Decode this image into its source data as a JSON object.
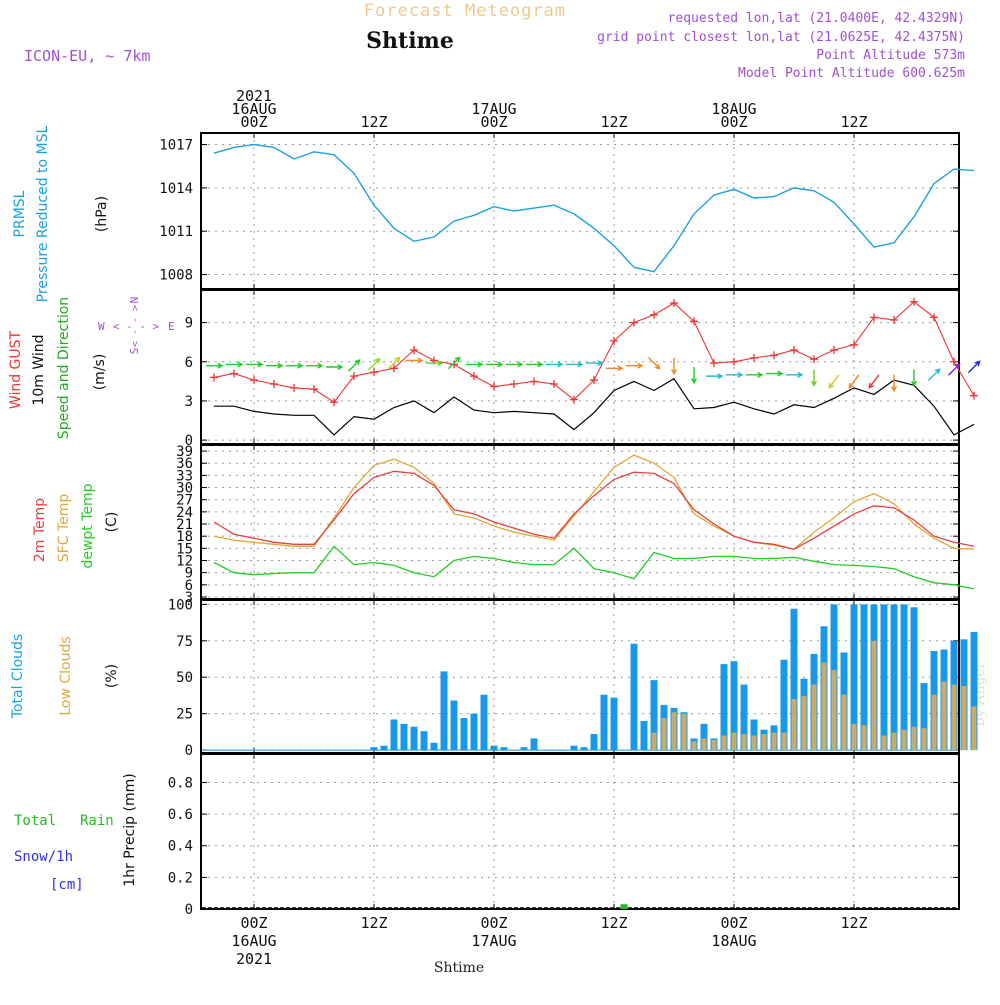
{
  "header": {
    "title_top": "Forecast Meteogram",
    "location": "Shtime",
    "model": "ICON-EU, ~ 7km",
    "requested": "requested lon,lat (21.0400E, 42.4329N)",
    "gridpoint": "grid point closest lon,lat (21.0625E, 42.4375N)",
    "point_alt": "Point Altitude 573m",
    "model_alt": "Model Point Altitude 600.625m",
    "footer_location": "Shtime",
    "watermark": "by Angel"
  },
  "time_axis": {
    "top_labels": [
      {
        "hour": 0,
        "lines": [
          "2021",
          "16AUG",
          "00Z"
        ]
      },
      {
        "hour": 12,
        "lines": [
          "12Z"
        ]
      },
      {
        "hour": 24,
        "lines": [
          "17AUG",
          "00Z"
        ]
      },
      {
        "hour": 36,
        "lines": [
          "12Z"
        ]
      },
      {
        "hour": 48,
        "lines": [
          "18AUG",
          "00Z"
        ]
      },
      {
        "hour": 60,
        "lines": [
          "12Z"
        ]
      }
    ],
    "bottom_labels": [
      {
        "hour": 0,
        "lines": [
          "00Z",
          "16AUG",
          "2021"
        ]
      },
      {
        "hour": 12,
        "lines": [
          "12Z"
        ]
      },
      {
        "hour": 24,
        "lines": [
          "00Z",
          "17AUG"
        ]
      },
      {
        "hour": 36,
        "lines": [
          "12Z"
        ]
      },
      {
        "hour": 48,
        "lines": [
          "00Z",
          "18AUG"
        ]
      },
      {
        "hour": 60,
        "lines": [
          "12Z"
        ]
      }
    ]
  },
  "colors": {
    "pressure": "#1ba1e2",
    "gust": "#ee3333",
    "wind": "#000000",
    "t2m": "#e34040",
    "sfc": "#e0a838",
    "dewpt": "#22cc22",
    "total_clouds": "#1799e8",
    "low_clouds": "#c9ab6a",
    "rain": "#22bb22",
    "snow": "#3030e0",
    "title_top": "#f0c890",
    "purple": "#a050d0"
  },
  "labels": {
    "p1": [
      "PRMSL",
      "Pressure Reduced to MSL",
      "(hPa)"
    ],
    "p2": [
      "Wind GUST",
      "10m Wind",
      "Speed and Direction",
      "(m/s)"
    ],
    "p3": [
      "2m Temp",
      "SFC Temp",
      "dewpt Temp",
      "(C)"
    ],
    "p4": [
      "Total Clouds",
      "Low Clouds",
      "(%)"
    ],
    "p5_total": "Total",
    "p5_rain": "Rain",
    "p5_snow": "Snow/1h",
    "p5_cm": "[cm]",
    "p5_axis": "1hr Precip (mm)",
    "compass": {
      "n": "N",
      "s": "S",
      "w": "W",
      "e": "E",
      "arrows": "< - - >"
    }
  },
  "chart_data": [
    {
      "type": "line",
      "name": "PRMSL",
      "ylabel": "(hPa)",
      "yticks": [
        "1008",
        "1011",
        "1014",
        "1017"
      ],
      "ylim": [
        1007,
        1017.8
      ],
      "x": [
        -4,
        -2,
        0,
        2,
        4,
        6,
        8,
        10,
        12,
        14,
        16,
        18,
        20,
        22,
        24,
        26,
        28,
        30,
        32,
        34,
        36,
        38,
        40,
        42,
        44,
        46,
        48,
        50,
        52,
        54,
        56,
        58,
        60,
        62,
        64,
        66,
        68,
        70,
        72
      ],
      "values": [
        1016.4,
        1016.8,
        1017.0,
        1016.8,
        1016.0,
        1016.5,
        1016.3,
        1015.0,
        1012.8,
        1011.2,
        1010.3,
        1010.6,
        1011.7,
        1012.1,
        1012.7,
        1012.4,
        1012.6,
        1012.8,
        1012.2,
        1011.2,
        1010.0,
        1008.5,
        1008.2,
        1010.0,
        1012.2,
        1013.5,
        1013.9,
        1013.3,
        1013.4,
        1014.0,
        1013.8,
        1013.0,
        1011.5,
        1009.9,
        1010.2,
        1012.0,
        1014.3,
        1015.3,
        1015.2
      ]
    },
    {
      "type": "line",
      "name": "Wind",
      "ylabel": "(m/s)",
      "yticks": [
        "0",
        "3",
        "6",
        "9"
      ],
      "ylim": [
        -0.3,
        11.5
      ],
      "x": [
        -4,
        -2,
        0,
        2,
        4,
        6,
        8,
        10,
        12,
        14,
        16,
        18,
        20,
        22,
        24,
        26,
        28,
        30,
        32,
        34,
        36,
        38,
        40,
        42,
        44,
        46,
        48,
        50,
        52,
        54,
        56,
        58,
        60,
        62,
        64,
        66,
        68,
        70,
        72
      ],
      "gust": [
        4.8,
        5.1,
        4.6,
        4.3,
        4.0,
        3.9,
        2.9,
        4.9,
        5.2,
        5.5,
        6.9,
        6.1,
        5.8,
        4.9,
        4.1,
        4.3,
        4.5,
        4.3,
        3.1,
        4.6,
        7.6,
        9.0,
        9.6,
        10.5,
        9.1,
        5.9,
        6.0,
        6.3,
        6.5,
        6.9,
        6.2,
        6.9,
        7.3,
        9.4,
        9.2,
        10.6,
        9.4,
        6.0,
        3.4
      ],
      "wind": [
        2.6,
        2.6,
        2.2,
        2.0,
        1.9,
        1.9,
        0.4,
        1.8,
        1.6,
        2.5,
        3.0,
        2.1,
        3.3,
        2.3,
        2.1,
        2.2,
        2.1,
        2.0,
        0.8,
        2.1,
        3.8,
        4.5,
        3.8,
        4.7,
        2.4,
        2.5,
        2.9,
        2.4,
        2.0,
        2.7,
        2.5,
        3.2,
        4.0,
        3.5,
        4.6,
        4.2,
        2.6,
        0.4,
        1.2
      ],
      "arrows": [
        {
          "x": -4,
          "y": 5.7,
          "dir": "e",
          "c": "#22cc22"
        },
        {
          "x": -2,
          "y": 5.8,
          "dir": "e",
          "c": "#22cc22"
        },
        {
          "x": 0,
          "y": 5.8,
          "dir": "e",
          "c": "#22cc22"
        },
        {
          "x": 2,
          "y": 5.7,
          "dir": "e",
          "c": "#22cc22"
        },
        {
          "x": 4,
          "y": 5.7,
          "dir": "e",
          "c": "#22cc22"
        },
        {
          "x": 6,
          "y": 5.7,
          "dir": "e",
          "c": "#22cc22"
        },
        {
          "x": 8,
          "y": 5.6,
          "dir": "e",
          "c": "#22cc22"
        },
        {
          "x": 10,
          "y": 5.7,
          "dir": "ne",
          "c": "#22cc22"
        },
        {
          "x": 12,
          "y": 5.8,
          "dir": "ne",
          "c": "#88dd22"
        },
        {
          "x": 14,
          "y": 5.9,
          "dir": "ne",
          "c": "#cccc22"
        },
        {
          "x": 16,
          "y": 6.1,
          "dir": "e",
          "c": "#ee8822"
        },
        {
          "x": 18,
          "y": 5.9,
          "dir": "e",
          "c": "#66cc22"
        },
        {
          "x": 20,
          "y": 5.9,
          "dir": "ne",
          "c": "#22cc22"
        },
        {
          "x": 22,
          "y": 5.8,
          "dir": "e",
          "c": "#22cc22"
        },
        {
          "x": 24,
          "y": 5.8,
          "dir": "e",
          "c": "#22cc22"
        },
        {
          "x": 26,
          "y": 5.8,
          "dir": "e",
          "c": "#22cc22"
        },
        {
          "x": 28,
          "y": 5.8,
          "dir": "e",
          "c": "#22cc22"
        },
        {
          "x": 30,
          "y": 5.8,
          "dir": "e",
          "c": "#22bbcc"
        },
        {
          "x": 32,
          "y": 5.8,
          "dir": "e",
          "c": "#22bbcc"
        },
        {
          "x": 34,
          "y": 5.9,
          "dir": "e",
          "c": "#22bbcc"
        },
        {
          "x": 36,
          "y": 5.5,
          "dir": "e",
          "c": "#ee8822"
        },
        {
          "x": 38,
          "y": 5.7,
          "dir": "e",
          "c": "#ee8822"
        },
        {
          "x": 40,
          "y": 5.9,
          "dir": "se",
          "c": "#ee8822"
        },
        {
          "x": 42,
          "y": 5.7,
          "dir": "s",
          "c": "#ee8822"
        },
        {
          "x": 44,
          "y": 5.0,
          "dir": "s",
          "c": "#22cc22"
        },
        {
          "x": 46,
          "y": 4.9,
          "dir": "e",
          "c": "#22bbcc"
        },
        {
          "x": 48,
          "y": 5.0,
          "dir": "e",
          "c": "#22bbcc"
        },
        {
          "x": 50,
          "y": 5.0,
          "dir": "e",
          "c": "#22cc22"
        },
        {
          "x": 52,
          "y": 5.1,
          "dir": "e",
          "c": "#22cc22"
        },
        {
          "x": 54,
          "y": 5.0,
          "dir": "e",
          "c": "#22bbcc"
        },
        {
          "x": 56,
          "y": 4.8,
          "dir": "s",
          "c": "#66cc22"
        },
        {
          "x": 58,
          "y": 4.5,
          "dir": "sw",
          "c": "#cccc22"
        },
        {
          "x": 60,
          "y": 4.5,
          "dir": "sw",
          "c": "#ee8822"
        },
        {
          "x": 62,
          "y": 4.5,
          "dir": "sw",
          "c": "#ee3333"
        },
        {
          "x": 64,
          "y": 4.4,
          "dir": "s",
          "c": "#ee8822"
        },
        {
          "x": 66,
          "y": 4.8,
          "dir": "s",
          "c": "#22cc22"
        },
        {
          "x": 68,
          "y": 5.0,
          "dir": "ne",
          "c": "#22bbcc"
        },
        {
          "x": 70,
          "y": 5.4,
          "dir": "ne",
          "c": "#8822cc"
        },
        {
          "x": 72,
          "y": 5.6,
          "dir": "ne",
          "c": "#2222ee"
        }
      ]
    },
    {
      "type": "line",
      "name": "Temperature",
      "ylabel": "(C)",
      "yticks": [
        "3",
        "6",
        "9",
        "12",
        "15",
        "18",
        "21",
        "24",
        "27",
        "30",
        "33",
        "36",
        "39"
      ],
      "ylim": [
        2.5,
        40.5
      ],
      "x": [
        -4,
        -2,
        0,
        2,
        4,
        6,
        8,
        10,
        12,
        14,
        16,
        18,
        20,
        22,
        24,
        26,
        28,
        30,
        32,
        34,
        36,
        38,
        40,
        42,
        44,
        46,
        48,
        50,
        52,
        54,
        56,
        58,
        60,
        62,
        64,
        66,
        68,
        70,
        72
      ],
      "t2m": [
        21.5,
        18.5,
        17.5,
        16.5,
        16.0,
        16.0,
        22.0,
        28.5,
        32.5,
        34.0,
        33.5,
        30.5,
        24.5,
        23.5,
        21.5,
        20.0,
        18.5,
        17.5,
        23.5,
        28.0,
        32.0,
        33.8,
        33.5,
        31.0,
        24.5,
        21.0,
        18.0,
        16.5,
        16.0,
        14.8,
        17.5,
        20.5,
        23.5,
        25.5,
        25.0,
        22.0,
        18.0,
        16.5,
        15.5
      ],
      "sfc": [
        18.0,
        17.0,
        16.5,
        16.0,
        15.5,
        15.5,
        22.5,
        30.0,
        35.5,
        37.0,
        35.0,
        31.0,
        23.5,
        22.5,
        20.5,
        19.0,
        18.0,
        17.0,
        23.0,
        29.0,
        35.0,
        38.0,
        36.0,
        32.5,
        23.5,
        20.5,
        18.0,
        16.5,
        15.8,
        14.8,
        19.0,
        22.5,
        26.5,
        28.5,
        26.0,
        21.0,
        17.5,
        15.0,
        14.8
      ],
      "dewpt": [
        11.5,
        9.0,
        8.5,
        8.8,
        9.0,
        9.0,
        15.5,
        11.0,
        11.5,
        10.8,
        9.0,
        8.0,
        12.0,
        13.0,
        12.5,
        11.5,
        11.0,
        11.0,
        15.0,
        10.0,
        9.0,
        7.5,
        14.0,
        12.5,
        12.5,
        13.0,
        13.0,
        12.5,
        12.5,
        12.8,
        11.8,
        11.0,
        10.8,
        10.5,
        10.0,
        8.0,
        6.5,
        6.0,
        5.0
      ]
    },
    {
      "type": "bar",
      "name": "Clouds",
      "ylabel": "(%)",
      "yticks": [
        "0",
        "25",
        "50",
        "75",
        "100"
      ],
      "ylim": [
        -2,
        103
      ],
      "x": [
        9,
        10,
        11,
        12,
        13,
        14,
        15,
        16,
        17,
        18,
        19,
        20,
        21,
        22,
        23,
        24,
        25,
        26,
        27,
        28,
        29,
        30,
        31,
        32,
        33,
        34,
        35,
        36,
        37,
        38,
        39,
        40,
        41,
        42,
        43,
        44,
        45,
        46,
        47,
        48,
        49,
        50,
        51,
        52,
        53,
        54,
        55,
        56,
        57,
        58,
        59,
        60,
        61,
        62,
        63,
        64,
        65,
        66,
        67,
        68,
        69,
        70,
        71,
        72
      ],
      "total": [
        0,
        0,
        0,
        2,
        3,
        21,
        18,
        16,
        13,
        5,
        54,
        34,
        22,
        25,
        38,
        3,
        2,
        0,
        2,
        8,
        0,
        0,
        0,
        3,
        2,
        11,
        38,
        36,
        0,
        73,
        20,
        48,
        31,
        29,
        26,
        8,
        18,
        8,
        59,
        61,
        45,
        21,
        14,
        17,
        62,
        97,
        49,
        66,
        85,
        100,
        67,
        100,
        100,
        100,
        100,
        100,
        100,
        98,
        46,
        68,
        69,
        75,
        76,
        81
      ],
      "low": [
        0,
        0,
        0,
        0,
        0,
        0,
        0,
        0,
        0,
        0,
        0,
        0,
        0,
        0,
        0,
        0,
        0,
        0,
        0,
        0,
        0,
        0,
        0,
        0,
        0,
        0,
        0,
        0,
        0,
        0,
        0,
        12,
        22,
        26,
        25,
        6,
        8,
        7,
        10,
        12,
        11,
        10,
        11,
        12,
        12,
        35,
        37,
        45,
        60,
        55,
        38,
        18,
        17,
        75,
        10,
        12,
        14,
        16,
        15,
        38,
        47,
        45,
        44,
        30
      ]
    },
    {
      "type": "bar",
      "name": "Precipitation",
      "ylabel": "1hr Precip (mm)",
      "yticks": [
        "0",
        "0.2",
        "0.4",
        "0.6",
        "0.8"
      ],
      "ylim": [
        0,
        0.98
      ],
      "x": [
        37
      ],
      "rain": [
        0.03
      ],
      "snow": [
        0
      ]
    }
  ]
}
